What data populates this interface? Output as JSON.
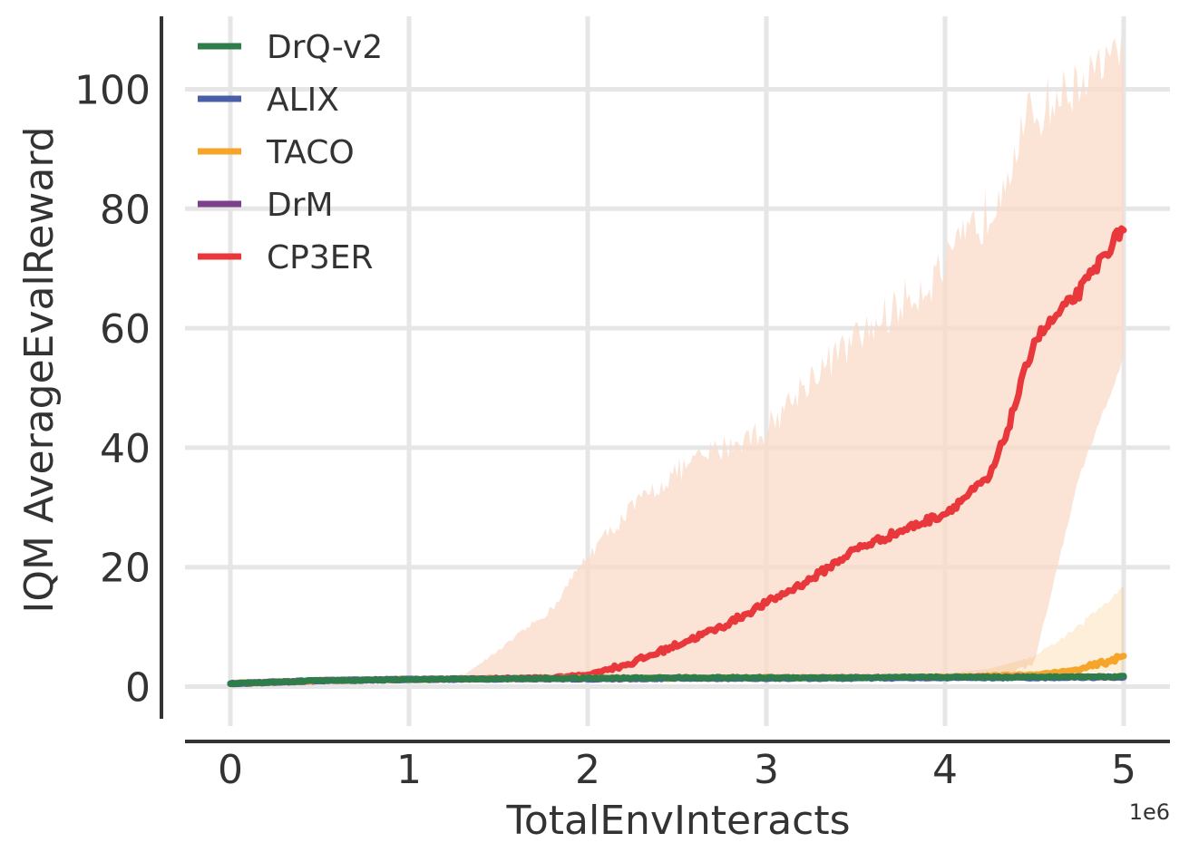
{
  "chart_data": {
    "type": "line",
    "xlabel": "TotalEnvInteracts",
    "ylabel": "IQM AverageEvalReward",
    "x_offset_label": "1e6",
    "xlim": [
      -0.25,
      5.25
    ],
    "ylim": [
      -5,
      112
    ],
    "xticks": [
      0,
      1,
      2,
      3,
      4,
      5
    ],
    "xtick_labels": [
      "0",
      "1",
      "2",
      "3",
      "4",
      "5"
    ],
    "yticks": [
      0,
      20,
      40,
      60,
      80,
      100
    ],
    "ytick_labels": [
      "0",
      "20",
      "40",
      "60",
      "80",
      "100"
    ],
    "grid": true,
    "legend": "top-left",
    "series": [
      {
        "name": "DrQ-v2",
        "color": "#2e7d4a",
        "x": [
          0,
          0.5,
          1,
          1.5,
          2,
          2.5,
          3,
          3.5,
          4,
          4.5,
          5
        ],
        "values": [
          0.5,
          1.0,
          1.2,
          1.3,
          1.4,
          1.5,
          1.5,
          1.5,
          1.6,
          1.6,
          1.7
        ],
        "band_low": [
          0.4,
          0.8,
          1.0,
          1.1,
          1.2,
          1.2,
          1.3,
          1.3,
          1.3,
          1.3,
          1.4
        ],
        "band_high": [
          0.6,
          1.2,
          1.4,
          1.5,
          1.6,
          1.7,
          1.8,
          1.8,
          1.9,
          2.0,
          2.1
        ]
      },
      {
        "name": "ALIX",
        "color": "#4a5fa8",
        "x": [
          0,
          0.5,
          1,
          1.5,
          2,
          2.5,
          3,
          3.5,
          4,
          4.5,
          5
        ],
        "values": [
          0.5,
          1.0,
          1.2,
          1.3,
          1.3,
          1.4,
          1.4,
          1.4,
          1.5,
          1.5,
          1.6
        ],
        "band_low": [
          0.4,
          0.8,
          1.0,
          1.1,
          1.1,
          1.2,
          1.2,
          1.2,
          1.2,
          1.3,
          1.3
        ],
        "band_high": [
          0.6,
          1.2,
          1.4,
          1.5,
          1.5,
          1.6,
          1.7,
          1.7,
          1.8,
          1.8,
          1.9
        ]
      },
      {
        "name": "TACO",
        "color": "#f5a52a",
        "x": [
          0,
          0.5,
          1,
          1.5,
          2,
          2.5,
          3,
          3.5,
          4,
          4.25,
          4.5,
          4.75,
          5
        ],
        "values": [
          0.5,
          1.0,
          1.2,
          1.3,
          1.4,
          1.4,
          1.5,
          1.5,
          1.6,
          1.8,
          2.0,
          2.8,
          5.0
        ],
        "band_low": [
          0.4,
          0.8,
          1.0,
          1.1,
          1.2,
          1.2,
          1.2,
          1.2,
          1.3,
          1.4,
          1.5,
          1.8,
          2.5
        ],
        "band_high": [
          0.6,
          1.2,
          1.4,
          1.6,
          1.7,
          1.8,
          1.9,
          2.0,
          2.2,
          3.0,
          5.0,
          10.0,
          17.0
        ]
      },
      {
        "name": "DrM",
        "color": "#7b3f8c",
        "x": [
          0,
          0.5,
          1,
          1.5,
          2,
          2.5,
          3,
          3.5,
          4,
          4.5,
          5
        ],
        "values": [
          0.5,
          1.0,
          1.2,
          1.3,
          1.3,
          1.4,
          1.4,
          1.5,
          1.5,
          1.6,
          1.6
        ],
        "band_low": [
          0.4,
          0.8,
          1.0,
          1.1,
          1.1,
          1.2,
          1.2,
          1.3,
          1.3,
          1.3,
          1.3
        ],
        "band_high": [
          0.6,
          1.2,
          1.4,
          1.5,
          1.5,
          1.6,
          1.7,
          1.7,
          1.8,
          1.9,
          2.0
        ]
      },
      {
        "name": "CP3ER",
        "color": "#e8383b",
        "band_color": "#f9d9c8",
        "x": [
          0,
          0.5,
          1,
          1.3,
          1.5,
          1.8,
          2,
          2.25,
          2.5,
          2.75,
          3,
          3.25,
          3.5,
          3.75,
          4,
          4.25,
          4.35,
          4.5,
          4.75,
          5
        ],
        "values": [
          0.5,
          1.0,
          1.2,
          1.3,
          1.4,
          1.5,
          2.0,
          4.0,
          7.0,
          10.0,
          14.0,
          18.0,
          23.0,
          26.0,
          29.0,
          35.0,
          43.0,
          58.0,
          66.0,
          77.0
        ],
        "band_low": [
          0.4,
          0.8,
          1.0,
          1.1,
          1.1,
          1.2,
          1.2,
          1.2,
          1.3,
          1.3,
          1.3,
          1.3,
          1.3,
          1.3,
          1.3,
          1.4,
          1.6,
          4.0,
          35.0,
          55.0
        ],
        "band_high": [
          0.6,
          1.2,
          1.5,
          1.8,
          6.0,
          13.0,
          22.0,
          30.0,
          36.0,
          40.0,
          43.0,
          52.0,
          58.0,
          64.0,
          70.0,
          80.0,
          88.0,
          96.0,
          101.0,
          107.0
        ]
      }
    ]
  }
}
